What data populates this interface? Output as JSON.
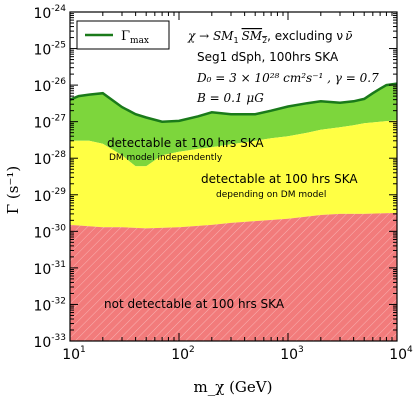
{
  "chart_data": {
    "type": "area",
    "xlabel": "m_χ (GeV)",
    "ylabel": "Γ (s⁻¹)",
    "xscale": "log",
    "yscale": "log",
    "xlim": [
      10,
      10000
    ],
    "ylim": [
      1e-33,
      1e-24
    ],
    "x_tick_labels": [
      "10",
      "10",
      "10",
      "10"
    ],
    "x_tick_exponents": [
      "1",
      "2",
      "3",
      "4"
    ],
    "x_tick_values": [
      10,
      100,
      1000,
      10000
    ],
    "y_tick_labels": [
      "10",
      "10",
      "10",
      "10",
      "10",
      "10",
      "10",
      "10",
      "10",
      "10"
    ],
    "y_tick_exponents": [
      "-33",
      "-32",
      "-31",
      "-30",
      "-29",
      "-28",
      "-27",
      "-26",
      "-25",
      "-24"
    ],
    "y_tick_values": [
      1e-33,
      1e-32,
      1e-31,
      1e-30,
      1e-29,
      1e-28,
      1e-27,
      1e-26,
      1e-25,
      1e-24
    ],
    "legend": {
      "position": "top-left",
      "entries": [
        {
          "label": "Γ",
          "label_sub": "max",
          "color": "#1a7a1a"
        }
      ]
    },
    "annotations": {
      "process_prefix": "χ → SM",
      "process_sub1": "1",
      "process_sm2": "SM",
      "process_sub2": "2",
      "process_suffix": ", excluding ν",
      "process_nubar": "ν̄",
      "target": "Seg1 dSph, 100hrs SKA",
      "diffusion": "D₀ = 3 × 10²⁸ cm²s⁻¹ , γ = 0.7",
      "bfield": "B = 0.1 μG"
    },
    "regions": [
      {
        "name": "detectable_independent",
        "label": "detectable at 100 hrs SKA",
        "sublabel": "DM model independently",
        "color": "#7dd63c"
      },
      {
        "name": "detectable_dependent",
        "label": "detectable at 100 hrs SKA",
        "sublabel": "depending on DM model",
        "color": "#ffff44"
      },
      {
        "name": "not_detectable",
        "label": "not detectable at 100 hrs SKA",
        "color": "#f27b7b"
      }
    ],
    "series": [
      {
        "name": "Γ_max",
        "color": "#1a7a1a",
        "x": [
          10,
          12,
          15,
          20,
          30,
          40,
          50,
          70,
          100,
          150,
          200,
          300,
          500,
          700,
          1000,
          1500,
          2000,
          3000,
          4000,
          5000,
          6000,
          7000,
          8000,
          10000
        ],
        "y": [
          4e-27,
          5e-27,
          5.5e-27,
          6e-27,
          2.5e-27,
          1.6e-27,
          1.3e-27,
          1e-27,
          1.05e-27,
          1.4e-27,
          1.8e-27,
          1.6e-27,
          1.6e-27,
          2e-27,
          2.6e-27,
          3.2e-27,
          3.6e-27,
          3.3e-27,
          3.6e-27,
          4.2e-27,
          6e-27,
          8e-27,
          1e-26,
          1.1e-26
        ]
      },
      {
        "name": "yellow_upper",
        "x": [
          10,
          15,
          20,
          30,
          40,
          50,
          70,
          100,
          150,
          200,
          300,
          500,
          700,
          1000,
          1500,
          2000,
          3000,
          4000,
          5000,
          7000,
          10000
        ],
        "y": [
          3e-28,
          3e-28,
          2.5e-28,
          1.2e-28,
          6e-29,
          6e-29,
          1.2e-28,
          1.5e-28,
          1.8e-28,
          2e-28,
          2.4e-28,
          3e-28,
          3.5e-28,
          4e-28,
          5e-28,
          6e-28,
          7e-28,
          8e-28,
          9e-28,
          1e-27,
          1.1e-27
        ]
      },
      {
        "name": "red_upper",
        "x": [
          10,
          20,
          30,
          50,
          100,
          200,
          300,
          500,
          1000,
          2000,
          3000,
          5000,
          7000,
          10000
        ],
        "y": [
          1.5e-30,
          1.3e-30,
          1.3e-30,
          1.2e-30,
          1.3e-30,
          1.5e-30,
          1.7e-30,
          1.9e-30,
          2.2e-30,
          2.8e-30,
          3e-30,
          3e-30,
          3.1e-30,
          3.2e-30
        ]
      }
    ],
    "grid": false
  }
}
